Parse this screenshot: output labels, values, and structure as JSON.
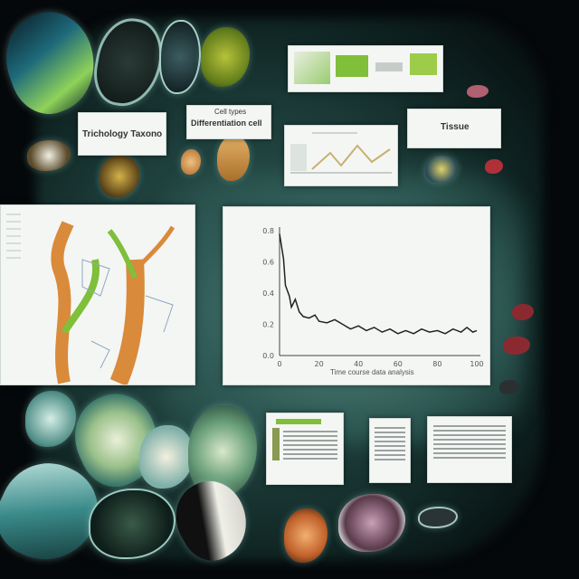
{
  "cards": {
    "top_left_label": "Trichology Taxonomy",
    "top_mid_label": "Differentiation cell",
    "top_mid_small": "Cell types",
    "right_label": "Tissue",
    "chart_caption": "Time course data analysis"
  },
  "chart_data": {
    "type": "line",
    "title": "",
    "xlabel": "",
    "ylabel": "",
    "yticks": [
      "0.8",
      "0.6",
      "0.4",
      "0.2",
      "0.0"
    ],
    "xticks": [
      "0",
      "20",
      "40",
      "60",
      "80",
      "100"
    ],
    "ylim": [
      0,
      0.8
    ],
    "xlim": [
      0,
      100
    ],
    "series": [
      {
        "values": [
          [
            0,
            0.78
          ],
          [
            2,
            0.62
          ],
          [
            3,
            0.45
          ],
          [
            5,
            0.38
          ],
          [
            6,
            0.31
          ],
          [
            8,
            0.36
          ],
          [
            10,
            0.28
          ],
          [
            12,
            0.25
          ],
          [
            15,
            0.24
          ],
          [
            18,
            0.26
          ],
          [
            20,
            0.22
          ],
          [
            24,
            0.21
          ],
          [
            28,
            0.23
          ],
          [
            32,
            0.2
          ],
          [
            36,
            0.17
          ],
          [
            40,
            0.19
          ],
          [
            44,
            0.16
          ],
          [
            48,
            0.18
          ],
          [
            52,
            0.15
          ],
          [
            56,
            0.17
          ],
          [
            60,
            0.14
          ],
          [
            64,
            0.16
          ],
          [
            68,
            0.14
          ],
          [
            72,
            0.17
          ],
          [
            76,
            0.15
          ],
          [
            80,
            0.16
          ],
          [
            84,
            0.14
          ],
          [
            88,
            0.17
          ],
          [
            92,
            0.15
          ],
          [
            95,
            0.18
          ],
          [
            98,
            0.15
          ],
          [
            100,
            0.16
          ]
        ]
      }
    ]
  },
  "colors": {
    "background": "#05080a",
    "glow": "#2e5b55",
    "line": "#222222",
    "card": "#f4f6f4",
    "accent_green": "#7fbf3a",
    "accent_orange": "#d98a3a"
  }
}
